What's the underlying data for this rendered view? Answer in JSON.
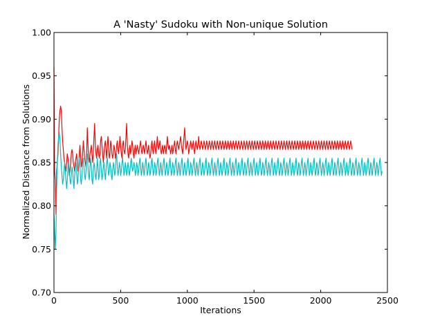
{
  "chart_data": {
    "type": "line",
    "title": "A 'Nasty' Sudoku with Non-unique Solution",
    "xlabel": "Iterations",
    "ylabel": "Normalized Distance from Solutions",
    "xlim": [
      0,
      2500
    ],
    "ylim": [
      0.7,
      1.0
    ],
    "x_ticks": [
      "0",
      "500",
      "1000",
      "1500",
      "2000",
      "2500"
    ],
    "y_ticks": [
      "0.70",
      "0.75",
      "0.80",
      "0.85",
      "0.90",
      "0.95",
      "1.00"
    ],
    "grid": false,
    "legend": "none",
    "x_step": 5,
    "series": [
      {
        "color": "#ff0000",
        "values": [
          0.96,
          0.84,
          0.83,
          0.79,
          0.84,
          0.85,
          0.86,
          0.88,
          0.9,
          0.91,
          0.915,
          0.91,
          0.89,
          0.875,
          0.865,
          0.855,
          0.85,
          0.845,
          0.84,
          0.85,
          0.86,
          0.855,
          0.845,
          0.835,
          0.84,
          0.85,
          0.86,
          0.865,
          0.86,
          0.85,
          0.845,
          0.84,
          0.85,
          0.855,
          0.86,
          0.85,
          0.84,
          0.845,
          0.86,
          0.87,
          0.855,
          0.845,
          0.85,
          0.86,
          0.875,
          0.865,
          0.855,
          0.85,
          0.845,
          0.86,
          0.89,
          0.87,
          0.855,
          0.85,
          0.86,
          0.865,
          0.87,
          0.86,
          0.85,
          0.86,
          0.88,
          0.895,
          0.87,
          0.86,
          0.855,
          0.865,
          0.87,
          0.86,
          0.855,
          0.86,
          0.875,
          0.88,
          0.87,
          0.86,
          0.85,
          0.86,
          0.87,
          0.875,
          0.865,
          0.855,
          0.87,
          0.88,
          0.865,
          0.855,
          0.86,
          0.875,
          0.87,
          0.86,
          0.855,
          0.86,
          0.87,
          0.865,
          0.855,
          0.86,
          0.87,
          0.875,
          0.865,
          0.86,
          0.87,
          0.88,
          0.87,
          0.86,
          0.855,
          0.87,
          0.875,
          0.865,
          0.86,
          0.865,
          0.88,
          0.895,
          0.87,
          0.86,
          0.855,
          0.865,
          0.87,
          0.86,
          0.865,
          0.875,
          0.87,
          0.86,
          0.855,
          0.865,
          0.87,
          0.86,
          0.865,
          0.87,
          0.865,
          0.86,
          0.865,
          0.87,
          0.875,
          0.865,
          0.86,
          0.865,
          0.87,
          0.865,
          0.86,
          0.87,
          0.875,
          0.865,
          0.86,
          0.865,
          0.87,
          0.86,
          0.855,
          0.86,
          0.87,
          0.875,
          0.865,
          0.86,
          0.87,
          0.875,
          0.865,
          0.86,
          0.87,
          0.88,
          0.87,
          0.865,
          0.87,
          0.875,
          0.865,
          0.86,
          0.865,
          0.87,
          0.86,
          0.865,
          0.87,
          0.865,
          0.86,
          0.87,
          0.88,
          0.87,
          0.865,
          0.87,
          0.865,
          0.86,
          0.865,
          0.87,
          0.86,
          0.865,
          0.87,
          0.875,
          0.865,
          0.86,
          0.87,
          0.875,
          0.87,
          0.865,
          0.87,
          0.875,
          0.88,
          0.87,
          0.865,
          0.86,
          0.87,
          0.88,
          0.89,
          0.875,
          0.865,
          0.87,
          0.875,
          0.87,
          0.86,
          0.865,
          0.87,
          0.875,
          0.87,
          0.865,
          0.87,
          0.875,
          0.865,
          0.86,
          0.87,
          0.875,
          0.87,
          0.865,
          0.87,
          0.88,
          0.87,
          0.865,
          0.87,
          0.875,
          0.87,
          0.865,
          0.87,
          0.875,
          0.87,
          0.865,
          0.87,
          0.875,
          0.87,
          0.865,
          0.87,
          0.875,
          0.87,
          0.865,
          0.87,
          0.875,
          0.87,
          0.865,
          0.87,
          0.875,
          0.87,
          0.865,
          0.87,
          0.875,
          0.87,
          0.865,
          0.87,
          0.875,
          0.87,
          0.865,
          0.87,
          0.875,
          0.87,
          0.865,
          0.87,
          0.875,
          0.87,
          0.865,
          0.87,
          0.875,
          0.87,
          0.865,
          0.87,
          0.875,
          0.87,
          0.865,
          0.87,
          0.875,
          0.87,
          0.865,
          0.87,
          0.875,
          0.87,
          0.865,
          0.87,
          0.875,
          0.87,
          0.865,
          0.87,
          0.875,
          0.87,
          0.865,
          0.87,
          0.875,
          0.87,
          0.865,
          0.87,
          0.875,
          0.87,
          0.865,
          0.87,
          0.875,
          0.87,
          0.865,
          0.87,
          0.875,
          0.87,
          0.865,
          0.87,
          0.875,
          0.87,
          0.865,
          0.87,
          0.875,
          0.87,
          0.865,
          0.87,
          0.875,
          0.87,
          0.865,
          0.87,
          0.875,
          0.87,
          0.865,
          0.87,
          0.875,
          0.87,
          0.865,
          0.87,
          0.875,
          0.87,
          0.865,
          0.87,
          0.875,
          0.87,
          0.865,
          0.87,
          0.875,
          0.87,
          0.865,
          0.87,
          0.875,
          0.87,
          0.865,
          0.87,
          0.875,
          0.87,
          0.865,
          0.87,
          0.875,
          0.87,
          0.865,
          0.87,
          0.875,
          0.87,
          0.865,
          0.87,
          0.875,
          0.87,
          0.865,
          0.87,
          0.875,
          0.87,
          0.865,
          0.87,
          0.875,
          0.87,
          0.865,
          0.87,
          0.875,
          0.87,
          0.865,
          0.87,
          0.875,
          0.87,
          0.865,
          0.87,
          0.875,
          0.87,
          0.865,
          0.87,
          0.875,
          0.87,
          0.865,
          0.87,
          0.875,
          0.87,
          0.865,
          0.87,
          0.875,
          0.87,
          0.865,
          0.87,
          0.875,
          0.87,
          0.865,
          0.87,
          0.875,
          0.87,
          0.865,
          0.87,
          0.875,
          0.87,
          0.865,
          0.87,
          0.875,
          0.87,
          0.865,
          0.87,
          0.875,
          0.87,
          0.865,
          0.87,
          0.875,
          0.87,
          0.865,
          0.87,
          0.875,
          0.87,
          0.865,
          0.87,
          0.875,
          0.87,
          0.865,
          0.87,
          0.875,
          0.87,
          0.865,
          0.87,
          0.875,
          0.87,
          0.865,
          0.87,
          0.875,
          0.87,
          0.865,
          0.87,
          0.875,
          0.87,
          0.865,
          0.87,
          0.875,
          0.87,
          0.865,
          0.87,
          0.875,
          0.87,
          0.865,
          0.87,
          0.875,
          0.87,
          0.865,
          0.87,
          0.875,
          0.87,
          0.865
        ]
      },
      {
        "color": "#00bfbf",
        "values": [
          0.79,
          0.77,
          0.75,
          0.77,
          0.82,
          0.85,
          0.87,
          0.88,
          0.885,
          0.875,
          0.86,
          0.845,
          0.835,
          0.825,
          0.83,
          0.84,
          0.85,
          0.84,
          0.83,
          0.82,
          0.83,
          0.845,
          0.85,
          0.84,
          0.83,
          0.825,
          0.835,
          0.845,
          0.84,
          0.83,
          0.82,
          0.835,
          0.845,
          0.85,
          0.84,
          0.825,
          0.83,
          0.845,
          0.855,
          0.845,
          0.83,
          0.825,
          0.835,
          0.85,
          0.855,
          0.845,
          0.835,
          0.83,
          0.84,
          0.855,
          0.86,
          0.845,
          0.835,
          0.83,
          0.845,
          0.855,
          0.845,
          0.83,
          0.825,
          0.84,
          0.85,
          0.845,
          0.835,
          0.83,
          0.84,
          0.855,
          0.845,
          0.83,
          0.835,
          0.85,
          0.855,
          0.84,
          0.83,
          0.835,
          0.845,
          0.85,
          0.84,
          0.83,
          0.84,
          0.85,
          0.855,
          0.845,
          0.835,
          0.84,
          0.85,
          0.845,
          0.835,
          0.83,
          0.84,
          0.85,
          0.845,
          0.835,
          0.84,
          0.855,
          0.86,
          0.845,
          0.835,
          0.84,
          0.85,
          0.845,
          0.835,
          0.84,
          0.85,
          0.855,
          0.845,
          0.835,
          0.84,
          0.85,
          0.845,
          0.835,
          0.84,
          0.85,
          0.845,
          0.835,
          0.84,
          0.85,
          0.855,
          0.845,
          0.84,
          0.845,
          0.85,
          0.845,
          0.835,
          0.84,
          0.85,
          0.845,
          0.835,
          0.84,
          0.85,
          0.855,
          0.845,
          0.835,
          0.84,
          0.85,
          0.845,
          0.835,
          0.84,
          0.85,
          0.855,
          0.845,
          0.835,
          0.84,
          0.85,
          0.845,
          0.835,
          0.84,
          0.85,
          0.855,
          0.845,
          0.835,
          0.84,
          0.85,
          0.845,
          0.835,
          0.84,
          0.85,
          0.855,
          0.845,
          0.835,
          0.84,
          0.85,
          0.845,
          0.835,
          0.84,
          0.85,
          0.855,
          0.845,
          0.835,
          0.84,
          0.85,
          0.845,
          0.835,
          0.84,
          0.85,
          0.855,
          0.845,
          0.835,
          0.84,
          0.85,
          0.845,
          0.835,
          0.84,
          0.85,
          0.855,
          0.845,
          0.835,
          0.84,
          0.85,
          0.845,
          0.835,
          0.84,
          0.85,
          0.855,
          0.845,
          0.835,
          0.84,
          0.85,
          0.845,
          0.835,
          0.84,
          0.85,
          0.855,
          0.845,
          0.835,
          0.84,
          0.85,
          0.845,
          0.835,
          0.84,
          0.85,
          0.855,
          0.845,
          0.835,
          0.84,
          0.85,
          0.845,
          0.835,
          0.84,
          0.85,
          0.855,
          0.845,
          0.835,
          0.84,
          0.85,
          0.845,
          0.835,
          0.84,
          0.85,
          0.855,
          0.845,
          0.835,
          0.84,
          0.85,
          0.845,
          0.835,
          0.84,
          0.85,
          0.855,
          0.845,
          0.835,
          0.84,
          0.85,
          0.845,
          0.835,
          0.84,
          0.85,
          0.855,
          0.845,
          0.835,
          0.84,
          0.85,
          0.845,
          0.835,
          0.84,
          0.85,
          0.855,
          0.845,
          0.835,
          0.84,
          0.85,
          0.845,
          0.835,
          0.84,
          0.85,
          0.855,
          0.845,
          0.835,
          0.84,
          0.85,
          0.845,
          0.835,
          0.84,
          0.85,
          0.855,
          0.845,
          0.835,
          0.84,
          0.85,
          0.845,
          0.835,
          0.84,
          0.85,
          0.855,
          0.845,
          0.835,
          0.84,
          0.85,
          0.845,
          0.835,
          0.84,
          0.85,
          0.855,
          0.845,
          0.835,
          0.84,
          0.85,
          0.845,
          0.835,
          0.84,
          0.85,
          0.855,
          0.845,
          0.835,
          0.84,
          0.85,
          0.845,
          0.835,
          0.84,
          0.85,
          0.855,
          0.845,
          0.835,
          0.84,
          0.85,
          0.845,
          0.835,
          0.84,
          0.85,
          0.855,
          0.845,
          0.835,
          0.84,
          0.85,
          0.845,
          0.835,
          0.84,
          0.85,
          0.855,
          0.845,
          0.835,
          0.84,
          0.85,
          0.845,
          0.835,
          0.84,
          0.85,
          0.855,
          0.845,
          0.835,
          0.84,
          0.85,
          0.845,
          0.835,
          0.84,
          0.85,
          0.855,
          0.845,
          0.835,
          0.84,
          0.85,
          0.845,
          0.835,
          0.84,
          0.85,
          0.855,
          0.845,
          0.835,
          0.84,
          0.85,
          0.845,
          0.835,
          0.84,
          0.85,
          0.855,
          0.845,
          0.835,
          0.84,
          0.85,
          0.845,
          0.835,
          0.84,
          0.85,
          0.855,
          0.845,
          0.835,
          0.84,
          0.85,
          0.845,
          0.835,
          0.84,
          0.85,
          0.855,
          0.845,
          0.835,
          0.84,
          0.85,
          0.845,
          0.835,
          0.84,
          0.85,
          0.855,
          0.845,
          0.835,
          0.84,
          0.85,
          0.845,
          0.835,
          0.84,
          0.85,
          0.855,
          0.845,
          0.835,
          0.84,
          0.85,
          0.845,
          0.835,
          0.84,
          0.85,
          0.855,
          0.845,
          0.835,
          0.84,
          0.85,
          0.845,
          0.835,
          0.84,
          0.85,
          0.855,
          0.845,
          0.835,
          0.84,
          0.85,
          0.845,
          0.835,
          0.84,
          0.85,
          0.855,
          0.845,
          0.835,
          0.84,
          0.85,
          0.845,
          0.835,
          0.84,
          0.85,
          0.855,
          0.845,
          0.835,
          0.84,
          0.85,
          0.845,
          0.835,
          0.84,
          0.85,
          0.855,
          0.845,
          0.835,
          0.84,
          0.85,
          0.845,
          0.835,
          0.84,
          0.85,
          0.855,
          0.845,
          0.835,
          0.84,
          0.85,
          0.845,
          0.835,
          0.84,
          0.85,
          0.855,
          0.845,
          0.835,
          0.84,
          0.85,
          0.845,
          0.835,
          0.84,
          0.85,
          0.855,
          0.845,
          0.835,
          0.84,
          0.85,
          0.845,
          0.835,
          0.84,
          0.85,
          0.855,
          0.845,
          0.835,
          0.84,
          0.85,
          0.845,
          0.835,
          0.84,
          0.85,
          0.855,
          0.845,
          0.835,
          0.84
        ]
      }
    ]
  }
}
